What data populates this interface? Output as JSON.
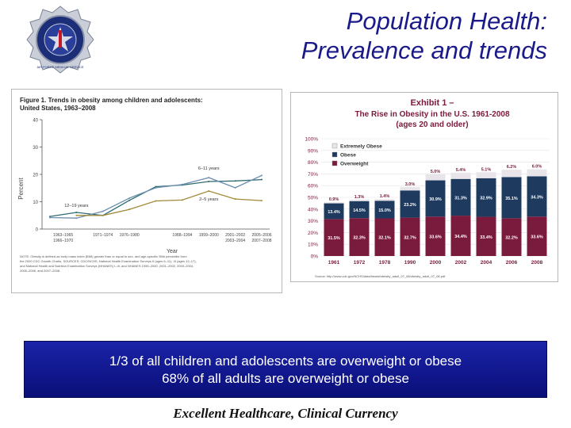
{
  "slide": {
    "title_line1": "Population Health:",
    "title_line2": "Prevalence and trends",
    "banner_line1": "1/3 of all children and adolescents are overweight or obese",
    "banner_line2": "68% of all adults are overweight or obese",
    "footer": "Excellent Healthcare, Clinical Currency",
    "logo_text": "AIR FORCE MEDICAL SERVICE"
  },
  "colors": {
    "title": "#1a1a8a",
    "banner": "#10189a",
    "extremely_obese": "#e8e4ea",
    "obese": "#1e3a5f",
    "overweight": "#7a1a3c"
  },
  "chart_data": [
    {
      "type": "line",
      "title": "Figure 1. Trends in obesity among children and adolescents: United States, 1963–2008",
      "ylabel": "Percent",
      "xlabel": "Year",
      "ylim": [
        0,
        40
      ],
      "yticks": [
        0,
        10,
        20,
        30,
        40
      ],
      "categories": [
        "1963–1965 1966–1970",
        "1971–1974",
        "1976–1980",
        "1988–1994",
        "1999–2000",
        "2001–2002 2003–2004",
        "2005–2006 2007–2008"
      ],
      "x": [
        0,
        1,
        2,
        3,
        4,
        5,
        6,
        7,
        8
      ],
      "series": [
        {
          "name": "12–19 years",
          "values": [
            4.6,
            6.1,
            5.0,
            10.5,
            15.5,
            16.1,
            17.4,
            17.6,
            18.1
          ]
        },
        {
          "name": "6–11 years",
          "values": [
            4.2,
            4.0,
            6.5,
            11.3,
            15.1,
            16.3,
            18.8,
            15.1,
            19.6
          ]
        },
        {
          "name": "2–5 years",
          "values": [
            null,
            5.0,
            5.0,
            7.2,
            10.3,
            10.6,
            13.9,
            11.0,
            10.4
          ]
        }
      ],
      "notes": "NOTE: Obesity is defined as body mass index (BMI) greater than or equal to sex- and age-specific 95th percentile from the 2000 CDC Growth Charts. SOURCES: CDC/NCHS, National Health Examination Surveys II (ages 6–11), III (ages 12–17), and National Health and Nutrition Examination Surveys (NHANES) I–III, and NHANES 1999–2000, 2001–2002, 2003–2004, 2005–2006, and 2007–2008."
    },
    {
      "type": "bar",
      "stacked": true,
      "title": "Exhibit 1 –",
      "subtitle1": "The Rise in Obesity in the U.S. 1961-2008",
      "subtitle2": "(ages 20 and older)",
      "categories": [
        "1961",
        "1972",
        "1978",
        "1990",
        "2000",
        "2002",
        "2004",
        "2006",
        "2008"
      ],
      "ylim": [
        0,
        100
      ],
      "yticks": [
        "0%",
        "10%",
        "20%",
        "30%",
        "40%",
        "50%",
        "60%",
        "70%",
        "80%",
        "90%",
        "100%"
      ],
      "series": [
        {
          "name": "Overweight",
          "values": [
            31.5,
            32.3,
            32.1,
            32.7,
            33.6,
            34.4,
            33.4,
            32.2,
            33.6
          ],
          "labels": [
            "31.5%",
            "32.3%",
            "32.1%",
            "32.7%",
            "33.6%",
            "34.4%",
            "33.4%",
            "32.2%",
            "33.6%"
          ]
        },
        {
          "name": "Obese",
          "values": [
            13.4,
            14.5,
            15.0,
            23.2,
            30.9,
            31.3,
            32.9,
            35.1,
            34.3
          ],
          "labels": [
            "13.4%",
            "14.5%",
            "15.0%",
            "23.2%",
            "30.9%",
            "31.3%",
            "32.9%",
            "35.1%",
            "34.3%"
          ]
        },
        {
          "name": "Extremely Obese",
          "values": [
            0.9,
            1.3,
            1.4,
            3.0,
            5.0,
            5.4,
            5.1,
            6.2,
            6.0
          ],
          "labels": [
            "0.9%",
            "1.3%",
            "1.4%",
            "3.0%",
            "5.0%",
            "5.4%",
            "5.1%",
            "6.2%",
            "6.0%"
          ]
        }
      ],
      "source": "Source: http://www.cdc.gov/NCHS/data/hestat/obesity_adult_07_08/obesity_adult_07_08.pdf"
    }
  ]
}
